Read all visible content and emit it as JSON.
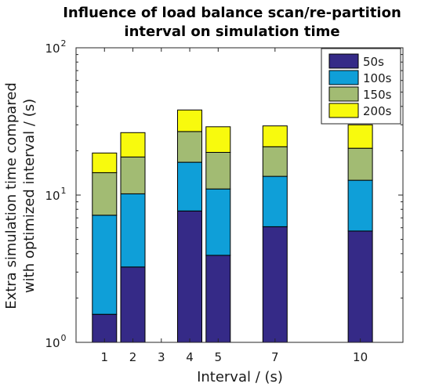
{
  "chart_data": {
    "type": "bar",
    "stacked": true,
    "title": [
      "Influence of load balance scan/re-partition",
      "interval on simulation time"
    ],
    "xlabel": "Interval / (s)",
    "ylabel": [
      "Extra simulation time compared",
      "with optimized interval / (s)"
    ],
    "yscale": "log",
    "ylim": [
      1,
      100
    ],
    "xlim": [
      0,
      11.5
    ],
    "xticks": [
      1,
      2,
      3,
      4,
      5,
      7,
      10
    ],
    "yticks": [
      {
        "value": 1,
        "base": "10",
        "exp": "0"
      },
      {
        "value": 10,
        "base": "10",
        "exp": "1"
      },
      {
        "value": 100,
        "base": "10",
        "exp": "2"
      }
    ],
    "grid": false,
    "legend_position": "top-right",
    "x": [
      1,
      2,
      4,
      5,
      7,
      10
    ],
    "series": [
      {
        "name": "50s",
        "color": "#352a87",
        "values": [
          1.55,
          3.25,
          7.8,
          3.9,
          6.1,
          5.7
        ]
      },
      {
        "name": "100s",
        "color": "#0f9fd8",
        "values": [
          5.75,
          6.95,
          8.9,
          7.1,
          7.3,
          6.9
        ]
      },
      {
        "name": "150s",
        "color": "#a2bb73",
        "values": [
          6.9,
          7.95,
          10.3,
          8.5,
          7.9,
          8.2
        ]
      },
      {
        "name": "200s",
        "color": "#f8fa0d",
        "values": [
          5.1,
          8.4,
          10.8,
          9.6,
          8.2,
          9.2
        ]
      }
    ]
  }
}
